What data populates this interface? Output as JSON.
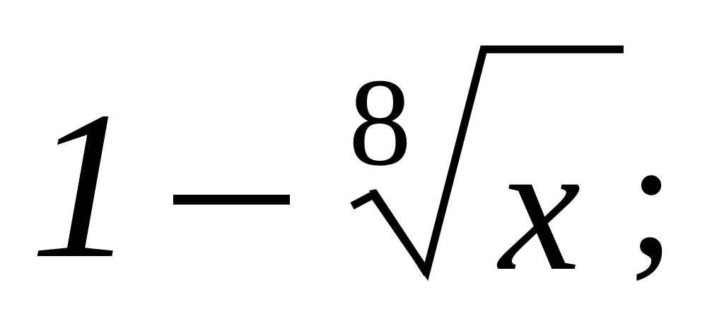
{
  "formula": {
    "leading_term": "1",
    "operator": "−",
    "root_index": "8",
    "radicand": "x",
    "terminator": ";"
  }
}
